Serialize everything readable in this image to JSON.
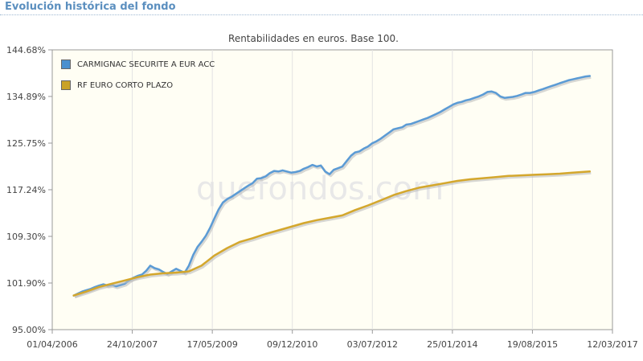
{
  "page": {
    "section_title": "Evolución histórica del fondo",
    "watermark": "quefondos.com"
  },
  "chart_data": {
    "type": "line",
    "title": "Rentabilidades en euros. Base 100.",
    "xlabel": "",
    "ylabel": "",
    "x_ticks": [
      "01/04/2006",
      "24/10/2007",
      "17/05/2009",
      "09/12/2010",
      "03/07/2012",
      "25/01/2014",
      "19/08/2015",
      "12/03/2017"
    ],
    "y_ticks": [
      "95.00%",
      "101.90%",
      "109.30%",
      "117.24%",
      "125.75%",
      "134.89%",
      "144.68%"
    ],
    "y_tick_values": [
      95.0,
      101.9,
      109.3,
      117.24,
      125.75,
      134.89,
      144.68
    ],
    "xlim": [
      "2006-04-01",
      "2017-03-12"
    ],
    "ylim": [
      95.0,
      144.68
    ],
    "log_scale": true,
    "grid": "vertical",
    "legend_position": "top-left",
    "series": [
      {
        "name": "CARMIGNAC SECURITE A EUR ACC",
        "color": "#5b9bd5",
        "swatch": "#4a90cf",
        "x": [
          "2006-09-01",
          "2006-10-01",
          "2006-11-01",
          "2006-12-01",
          "2007-01-01",
          "2007-02-01",
          "2007-03-01",
          "2007-04-01",
          "2007-05-01",
          "2007-06-01",
          "2007-07-01",
          "2007-08-01",
          "2007-09-01",
          "2007-10-01",
          "2007-11-01",
          "2007-12-01",
          "2008-01-01",
          "2008-02-01",
          "2008-03-01",
          "2008-04-01",
          "2008-05-01",
          "2008-06-01",
          "2008-07-01",
          "2008-08-01",
          "2008-09-01",
          "2008-10-01",
          "2008-11-01",
          "2008-12-01",
          "2009-01-01",
          "2009-02-01",
          "2009-03-01",
          "2009-04-01",
          "2009-05-01",
          "2009-06-01",
          "2009-07-01",
          "2009-08-01",
          "2009-09-01",
          "2009-10-01",
          "2009-11-01",
          "2009-12-01",
          "2010-01-01",
          "2010-02-01",
          "2010-03-01",
          "2010-04-01",
          "2010-05-01",
          "2010-06-01",
          "2010-07-01",
          "2010-08-01",
          "2010-09-01",
          "2010-10-01",
          "2010-11-01",
          "2010-12-01",
          "2011-01-01",
          "2011-02-01",
          "2011-03-01",
          "2011-04-01",
          "2011-05-01",
          "2011-06-01",
          "2011-07-01",
          "2011-08-01",
          "2011-09-01",
          "2011-10-01",
          "2011-11-01",
          "2011-12-01",
          "2012-01-01",
          "2012-02-01",
          "2012-03-01",
          "2012-04-01",
          "2012-05-01",
          "2012-06-01",
          "2012-07-01",
          "2012-08-01",
          "2012-09-01",
          "2012-10-01",
          "2012-11-01",
          "2012-12-01",
          "2013-01-01",
          "2013-02-01",
          "2013-03-01",
          "2013-04-01",
          "2013-05-01",
          "2013-06-01",
          "2013-07-01",
          "2013-08-01",
          "2013-09-01",
          "2013-10-01",
          "2013-11-01",
          "2013-12-01",
          "2014-01-01",
          "2014-02-01",
          "2014-03-01",
          "2014-04-01",
          "2014-05-01",
          "2014-06-01",
          "2014-07-01",
          "2014-08-01",
          "2014-09-01",
          "2014-10-01",
          "2014-11-01",
          "2014-12-01",
          "2015-01-01",
          "2015-02-01",
          "2015-03-01",
          "2015-04-01",
          "2015-05-01",
          "2015-06-01",
          "2015-07-01",
          "2015-08-01",
          "2015-09-01",
          "2015-10-01",
          "2015-11-01",
          "2015-12-01",
          "2016-01-01",
          "2016-02-01",
          "2016-03-01",
          "2016-04-01",
          "2016-05-01",
          "2016-06-01",
          "2016-07-01",
          "2016-08-01",
          "2016-09-01",
          "2016-10-01"
        ],
        "y": [
          100.0,
          100.3,
          100.6,
          100.8,
          101.0,
          101.3,
          101.5,
          101.7,
          101.5,
          101.6,
          101.4,
          101.6,
          101.8,
          102.3,
          102.7,
          103.0,
          103.2,
          103.8,
          104.6,
          104.2,
          104.0,
          103.6,
          103.3,
          103.7,
          104.1,
          103.8,
          103.5,
          104.6,
          106.3,
          107.6,
          108.4,
          109.4,
          110.7,
          112.3,
          113.8,
          115.0,
          115.6,
          116.0,
          116.5,
          117.0,
          117.5,
          118.0,
          118.4,
          119.2,
          119.3,
          119.6,
          120.2,
          120.6,
          120.5,
          120.7,
          120.5,
          120.3,
          120.4,
          120.6,
          121.0,
          121.3,
          121.7,
          121.4,
          121.6,
          120.5,
          120.0,
          120.8,
          121.1,
          121.4,
          122.4,
          123.4,
          124.0,
          124.2,
          124.7,
          125.1,
          125.7,
          126.1,
          126.6,
          127.2,
          127.8,
          128.4,
          128.6,
          128.8,
          129.3,
          129.4,
          129.7,
          130.0,
          130.3,
          130.6,
          131.0,
          131.4,
          131.8,
          132.3,
          132.8,
          133.3,
          133.6,
          133.8,
          134.1,
          134.3,
          134.6,
          134.9,
          135.3,
          135.8,
          135.9,
          135.6,
          134.9,
          134.6,
          134.7,
          134.8,
          135.0,
          135.3,
          135.6,
          135.6,
          135.8,
          136.1,
          136.4,
          136.7,
          137.0,
          137.3,
          137.6,
          137.9,
          138.2,
          138.4,
          138.6,
          138.8,
          139.0,
          139.1
        ],
        "values_note": ""
      },
      {
        "name": "RF EURO CORTO PLAZO",
        "color": "#d4a72c",
        "swatch": "#c9a227",
        "x": [
          "2006-09-01",
          "2006-12-01",
          "2007-03-01",
          "2007-06-01",
          "2007-09-01",
          "2007-12-01",
          "2008-03-01",
          "2008-06-01",
          "2008-09-01",
          "2008-12-01",
          "2009-03-01",
          "2009-06-01",
          "2009-09-01",
          "2009-12-01",
          "2010-03-01",
          "2010-06-01",
          "2010-09-01",
          "2010-12-01",
          "2011-03-01",
          "2011-06-01",
          "2011-09-01",
          "2011-12-01",
          "2012-03-01",
          "2012-06-01",
          "2012-09-01",
          "2012-12-01",
          "2013-03-01",
          "2013-06-01",
          "2013-09-01",
          "2013-12-01",
          "2014-03-01",
          "2014-06-01",
          "2014-09-01",
          "2014-12-01",
          "2015-03-01",
          "2015-06-01",
          "2015-09-01",
          "2015-12-01",
          "2016-03-01",
          "2016-06-01",
          "2016-10-01"
        ],
        "y": [
          100.0,
          100.6,
          101.3,
          101.8,
          102.3,
          102.8,
          103.2,
          103.4,
          103.5,
          103.7,
          104.6,
          106.2,
          107.4,
          108.4,
          109.0,
          109.7,
          110.3,
          110.9,
          111.5,
          112.0,
          112.4,
          112.8,
          113.7,
          114.5,
          115.4,
          116.3,
          117.0,
          117.6,
          118.0,
          118.4,
          118.8,
          119.1,
          119.3,
          119.5,
          119.7,
          119.8,
          119.9,
          120.0,
          120.1,
          120.3,
          120.5
        ],
        "values_note": ""
      }
    ]
  }
}
